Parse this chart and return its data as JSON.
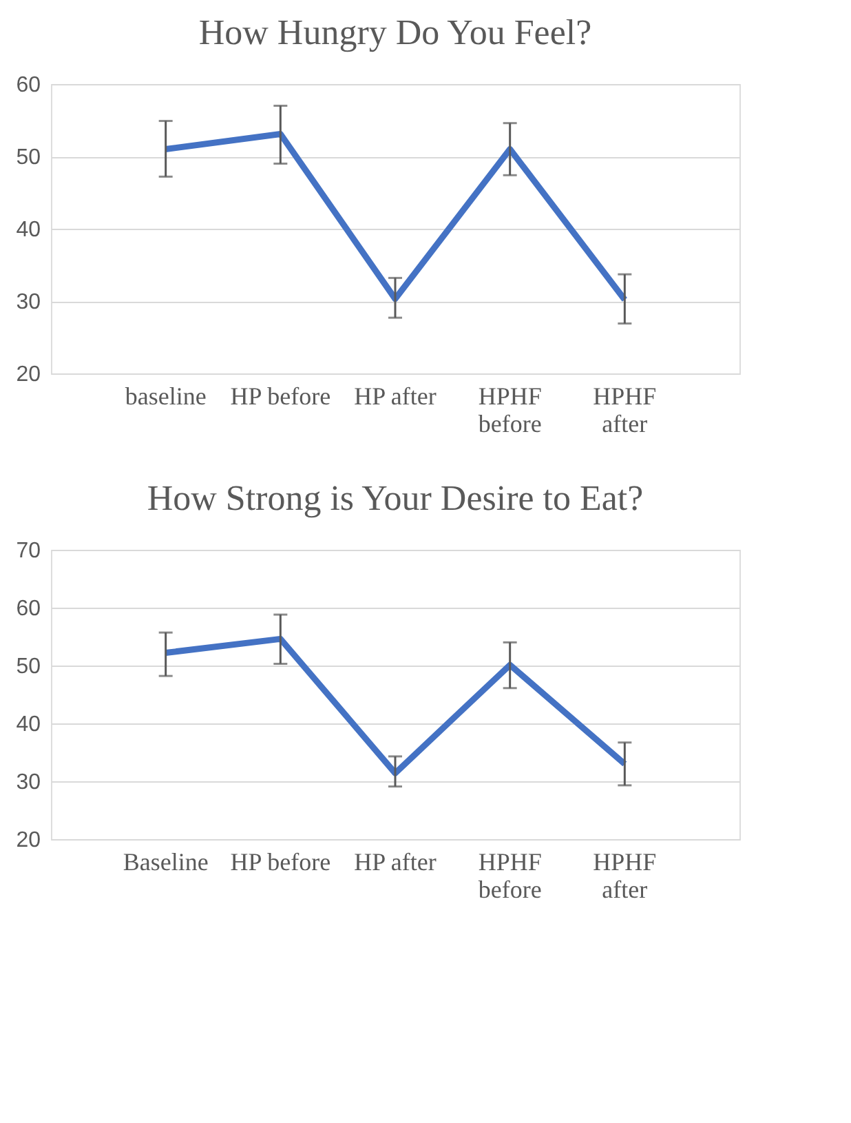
{
  "chart_data": [
    {
      "type": "line",
      "title": "How Hungry Do You Feel?",
      "categories": [
        "baseline",
        "HP before",
        "HP after",
        "HPHF before",
        "HPHF after"
      ],
      "series": [
        {
          "color": "#4472c4",
          "values": [
            51.0,
            53.1,
            30.3,
            51.0,
            30.2
          ],
          "errors": [
            [
              47.2,
              54.9
            ],
            [
              49.0,
              57.0
            ],
            [
              27.7,
              33.2
            ],
            [
              47.4,
              54.6
            ],
            [
              26.9,
              33.7
            ]
          ]
        }
      ],
      "ylim": [
        20,
        60
      ],
      "yticks": [
        20,
        30,
        40,
        50,
        60
      ],
      "grid": "y",
      "marker": "none",
      "line_style": "solid"
    },
    {
      "type": "line",
      "title": "How Strong is Your Desire to Eat?",
      "categories": [
        "Baseline",
        "HP before",
        "HP after",
        "HPHF before",
        "HPHF after"
      ],
      "series": [
        {
          "color": "#4472c4",
          "values": [
            52.2,
            54.6,
            31.4,
            50.1,
            33.0
          ],
          "errors": [
            [
              48.2,
              55.7
            ],
            [
              50.3,
              58.8
            ],
            [
              29.1,
              34.3
            ],
            [
              46.1,
              54.0
            ],
            [
              29.3,
              36.7
            ]
          ]
        }
      ],
      "ylim": [
        20,
        70
      ],
      "yticks": [
        20,
        30,
        40,
        50,
        60,
        70
      ],
      "grid": "y",
      "marker": "none",
      "line_style": "solid"
    }
  ]
}
